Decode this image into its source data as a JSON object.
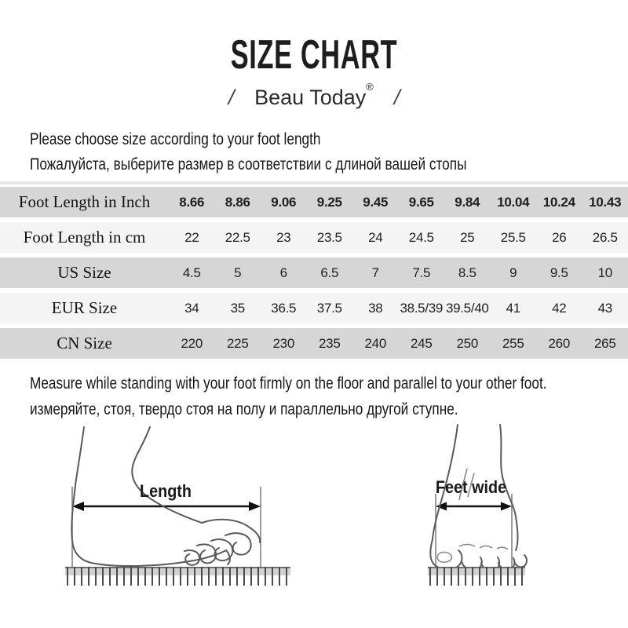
{
  "title": "SIZE CHART",
  "brand": {
    "slash": "/",
    "name": "Beau Today",
    "reg": "®"
  },
  "intro": {
    "en": "Please choose size according to your foot length",
    "ru": "Пожалуйста, выберите размер в соответствии с длиной вашей стопы"
  },
  "measure": {
    "en": "Measure while standing with your foot firmly on the floor and parallel to your other foot.",
    "ru": "измеряйте, стоя, твердо стоя на полу и параллельно другой ступне."
  },
  "chart_data": {
    "type": "table",
    "title": "Size Chart",
    "rows": [
      {
        "label": "Foot Length in Inch",
        "values": [
          "8.66",
          "8.86",
          "9.06",
          "9.25",
          "9.45",
          "9.65",
          "9.84",
          "10.04",
          "10.24",
          "10.43"
        ]
      },
      {
        "label": "Foot Length in cm",
        "values": [
          "22",
          "22.5",
          "23",
          "23.5",
          "24",
          "24.5",
          "25",
          "25.5",
          "26",
          "26.5"
        ]
      },
      {
        "label": "US Size",
        "values": [
          "4.5",
          "5",
          "6",
          "6.5",
          "7",
          "7.5",
          "8.5",
          "9",
          "9.5",
          "10"
        ]
      },
      {
        "label": "EUR Size",
        "values": [
          "34",
          "35",
          "36.5",
          "37.5",
          "38",
          "38.5/39",
          "39.5/40",
          "41",
          "42",
          "43"
        ]
      },
      {
        "label": "CN Size",
        "values": [
          "220",
          "225",
          "230",
          "235",
          "240",
          "245",
          "250",
          "255",
          "260",
          "265"
        ]
      }
    ]
  },
  "diagrams": {
    "length_label": "Length",
    "width_label": "Feet wide"
  },
  "colors": {
    "row_gray": "#d6d6d6",
    "row_light": "#f4f4f4",
    "text": "#1b1b1b",
    "rule": "#e7e7e7"
  }
}
